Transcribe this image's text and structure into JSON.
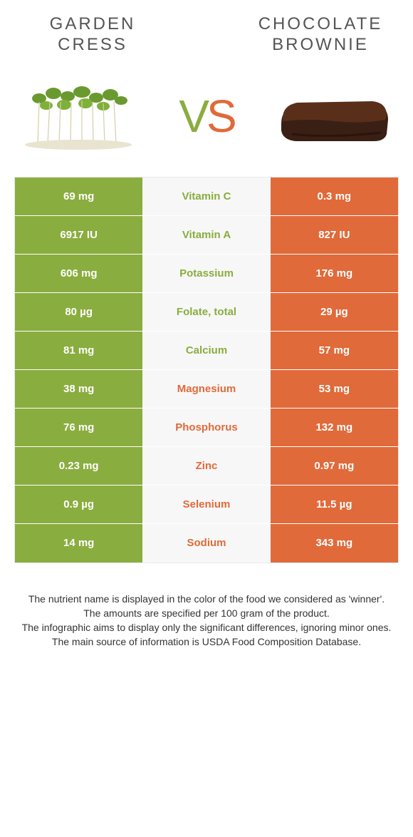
{
  "header": {
    "left_title": "GARDEN CRESS",
    "right_title": "CHOCOLATE BROWNIE"
  },
  "vs": {
    "v": "V",
    "s": "S"
  },
  "colors": {
    "left": "#8aad3f",
    "right": "#e06a3a",
    "mid_bg": "#f7f7f7"
  },
  "rows": [
    {
      "left": "69 mg",
      "name": "Vitamin C",
      "winner": "left",
      "right": "0.3 mg"
    },
    {
      "left": "6917 IU",
      "name": "Vitamin A",
      "winner": "left",
      "right": "827 IU"
    },
    {
      "left": "606 mg",
      "name": "Potassium",
      "winner": "left",
      "right": "176 mg"
    },
    {
      "left": "80 µg",
      "name": "Folate, total",
      "winner": "left",
      "right": "29 µg"
    },
    {
      "left": "81 mg",
      "name": "Calcium",
      "winner": "left",
      "right": "57 mg"
    },
    {
      "left": "38 mg",
      "name": "Magnesium",
      "winner": "right",
      "right": "53 mg"
    },
    {
      "left": "76 mg",
      "name": "Phosphorus",
      "winner": "right",
      "right": "132 mg"
    },
    {
      "left": "0.23 mg",
      "name": "Zinc",
      "winner": "right",
      "right": "0.97 mg"
    },
    {
      "left": "0.9 µg",
      "name": "Selenium",
      "winner": "right",
      "right": "11.5 µg"
    },
    {
      "left": "14 mg",
      "name": "Sodium",
      "winner": "right",
      "right": "343 mg"
    }
  ],
  "footer": {
    "l1": "The nutrient name is displayed in the color of the food we considered as 'winner'.",
    "l2": "The amounts are specified per 100 gram of the product.",
    "l3": "The infographic aims to display only the significant differences, ignoring minor ones.",
    "l4": "The main source of information is USDA Food Composition Database."
  }
}
